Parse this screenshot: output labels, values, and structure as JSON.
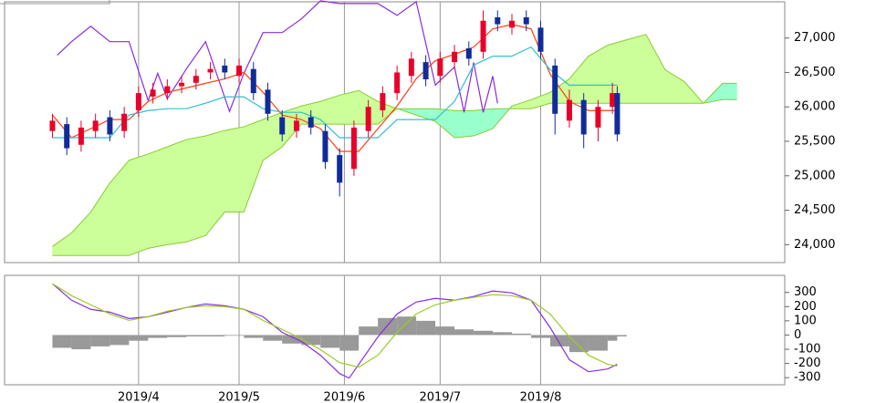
{
  "chart_data": [
    {
      "type": "candlestick",
      "xlim": [
        0,
        163
      ],
      "xticks": [
        28,
        49,
        71,
        91,
        112
      ],
      "ylim": [
        23740,
        27525
      ],
      "yticks": [
        {
          "value": 24000,
          "label": "24,000"
        },
        {
          "value": 24500,
          "label": "24,500"
        },
        {
          "value": 25000,
          "label": "25,000"
        },
        {
          "value": 25500,
          "label": "25,500"
        },
        {
          "value": 26000,
          "label": "26,000"
        },
        {
          "value": 26500,
          "label": "26,500"
        },
        {
          "value": 27000,
          "label": "27,000"
        }
      ],
      "grid": true,
      "up_color": "#e8002a",
      "down_color": "#102c98",
      "x": [
        10,
        13,
        16,
        19,
        22,
        25,
        28,
        31,
        34,
        37,
        40,
        43,
        46,
        49,
        52,
        55,
        58,
        61,
        64,
        67,
        70,
        73,
        76,
        79,
        82,
        85,
        88,
        91,
        94,
        97,
        100,
        103,
        106,
        109,
        112,
        115,
        118,
        121,
        124,
        127,
        128
      ],
      "open": [
        25650,
        25750,
        25450,
        25650,
        25850,
        25650,
        25950,
        26150,
        26200,
        26300,
        26350,
        26500,
        26600,
        26450,
        26550,
        26250,
        25850,
        25650,
        25850,
        25650,
        25300,
        25100,
        25650,
        25950,
        26200,
        26450,
        26650,
        26450,
        26650,
        26850,
        26800,
        27300,
        27150,
        27300,
        27150,
        26600,
        25800,
        26100,
        25700,
        26000,
        26200
      ],
      "high": [
        25900,
        25850,
        25800,
        25900,
        25950,
        26000,
        26300,
        26350,
        26400,
        26450,
        26550,
        26650,
        26700,
        26700,
        26650,
        26350,
        25950,
        25900,
        25950,
        25750,
        25400,
        25800,
        26100,
        26300,
        26600,
        26800,
        26750,
        26800,
        26900,
        26950,
        27400,
        27400,
        27350,
        27400,
        27250,
        26700,
        26250,
        26200,
        26100,
        26350,
        26300
      ],
      "low": [
        25550,
        25300,
        25350,
        25550,
        25500,
        25550,
        25850,
        26050,
        26100,
        26200,
        26250,
        26400,
        26400,
        26350,
        26100,
        25800,
        25500,
        25550,
        25600,
        25100,
        24700,
        25000,
        25550,
        25850,
        26100,
        26350,
        26300,
        26350,
        26550,
        26600,
        26700,
        27100,
        27050,
        27100,
        26700,
        25600,
        25700,
        25400,
        25500,
        25900,
        25500
      ],
      "close": [
        25800,
        25400,
        25700,
        25800,
        25600,
        25900,
        26200,
        26250,
        26300,
        26350,
        26450,
        26550,
        26500,
        26600,
        26200,
        25900,
        25600,
        25800,
        25700,
        25200,
        24900,
        25700,
        26000,
        26200,
        26500,
        26700,
        26400,
        26700,
        26800,
        26700,
        27250,
        27200,
        27250,
        27200,
        26800,
        25900,
        26100,
        25600,
        26000,
        26200,
        25600
      ],
      "cloud": {
        "x": [
          10,
          14,
          18,
          22,
          26,
          30,
          34,
          38,
          42,
          46,
          50,
          54,
          58,
          62,
          66,
          70,
          74,
          78,
          82,
          86,
          90,
          94,
          98,
          102,
          106,
          110,
          114,
          118,
          122,
          126,
          130,
          134,
          138,
          142,
          146,
          150,
          153
        ],
        "span_a": [
          23974,
          24171,
          24474,
          24895,
          25224,
          25316,
          25421,
          25526,
          25579,
          25658,
          25711,
          25816,
          25921,
          26013,
          26079,
          26171,
          26237,
          26079,
          25974,
          25882,
          25789,
          25553,
          25579,
          25684,
          26013,
          26105,
          26211,
          26408,
          26737,
          26895,
          26974,
          27053,
          26539,
          26368,
          26053,
          26105,
          26105
        ],
        "span_b": [
          23842,
          23842,
          23842,
          23842,
          23842,
          23947,
          24000,
          24039,
          24132,
          24474,
          24474,
          25224,
          25421,
          25750,
          25750,
          25750,
          25750,
          25750,
          25974,
          25974,
          25974,
          25947,
          25947,
          25974,
          25974,
          25974,
          26053,
          26053,
          26053,
          26053,
          26053,
          26053,
          26053,
          26053,
          26053,
          26342,
          26342
        ],
        "color_a": "#ccff99",
        "color_b": "#99ffcc",
        "edge_color": "#88cc33"
      },
      "series": [
        {
          "color": "#8a2be2",
          "x": [
            11,
            14,
            18,
            22,
            26,
            30,
            32,
            34,
            38,
            42,
            47,
            50,
            54,
            58,
            62,
            66,
            70,
            74,
            78,
            82,
            86,
            90,
            94,
            96,
            98,
            100,
            102,
            103
          ],
          "values": [
            26750,
            26947,
            27171,
            26947,
            26947,
            26092,
            26487,
            26118,
            26553,
            26947,
            25934,
            26487,
            27079,
            27079,
            27276,
            27539,
            27500,
            27500,
            27500,
            27329,
            27526,
            26316,
            26579,
            25921,
            26645,
            25921,
            26447,
            26053
          ]
        },
        {
          "color": "#ff4010",
          "x": [
            10,
            14,
            18,
            22,
            26,
            30,
            34,
            38,
            42,
            46,
            50,
            54,
            58,
            62,
            66,
            70,
            74,
            78,
            82,
            86,
            90,
            94,
            98,
            102,
            106,
            110,
            114,
            118,
            122,
            126,
            128
          ],
          "values": [
            25882,
            25553,
            25684,
            25816,
            25816,
            26079,
            26211,
            26276,
            26342,
            26408,
            26500,
            26211,
            25882,
            25816,
            25684,
            25355,
            25355,
            25684,
            26013,
            26408,
            26671,
            26763,
            26868,
            27132,
            27197,
            27132,
            26474,
            26079,
            25947,
            25947,
            25947
          ]
        },
        {
          "color": "#30c0d0",
          "x": [
            10,
            14,
            18,
            22,
            26,
            30,
            34,
            38,
            42,
            46,
            50,
            54,
            58,
            62,
            66,
            70,
            74,
            78,
            82,
            86,
            90,
            94,
            98,
            102,
            106,
            110,
            114,
            118,
            122,
            126,
            128
          ],
          "values": [
            25553,
            25553,
            25553,
            25553,
            25882,
            25947,
            25974,
            25974,
            26053,
            26145,
            26145,
            25974,
            25921,
            25921,
            25816,
            25553,
            25553,
            25553,
            25816,
            25816,
            25816,
            26079,
            26605,
            26737,
            26737,
            26868,
            26539,
            26316,
            26316,
            26316,
            26316
          ]
        }
      ]
    },
    {
      "type": "macd",
      "xlim": [
        0,
        163
      ],
      "xticks": [
        {
          "value": 28,
          "label": "2019/4"
        },
        {
          "value": 49,
          "label": "2019/5"
        },
        {
          "value": 71,
          "label": "2019/6"
        },
        {
          "value": 91,
          "label": "2019/7"
        },
        {
          "value": 112,
          "label": "2019/8"
        }
      ],
      "ylim": [
        -350,
        420
      ],
      "yticks": [
        300,
        200,
        100,
        0,
        -100,
        -200,
        -300
      ],
      "series": [
        {
          "type": "bar",
          "color": "#999999",
          "x": [
            10,
            14,
            18,
            22,
            26,
            30,
            34,
            38,
            42,
            46,
            50,
            54,
            58,
            62,
            66,
            70,
            74,
            78,
            82,
            86,
            90,
            94,
            98,
            102,
            106,
            110,
            114,
            118,
            122,
            126,
            128
          ],
          "values": [
            -90,
            -100,
            -80,
            -70,
            -40,
            -20,
            -15,
            -10,
            -10,
            -5,
            -20,
            -40,
            -60,
            -70,
            -90,
            -110,
            60,
            120,
            130,
            100,
            60,
            40,
            30,
            20,
            10,
            -20,
            -80,
            -120,
            -110,
            -40,
            -10
          ]
        },
        {
          "type": "line",
          "color": "#8a2be2",
          "x": [
            10,
            14,
            18,
            22,
            26,
            30,
            34,
            38,
            42,
            46,
            50,
            54,
            58,
            62,
            66,
            70,
            72,
            74,
            78,
            82,
            86,
            90,
            94,
            98,
            102,
            106,
            110,
            114,
            118,
            122,
            126,
            128
          ],
          "values": [
            361,
            245,
            181,
            161,
            116,
            129,
            161,
            194,
            219,
            206,
            181,
            129,
            19,
            -45,
            -142,
            -271,
            -303,
            -206,
            -13,
            148,
            232,
            258,
            245,
            271,
            310,
            297,
            245,
            52,
            -174,
            -258,
            -239,
            -206
          ]
        },
        {
          "type": "line",
          "color": "#99cc22",
          "x": [
            10,
            14,
            18,
            22,
            26,
            30,
            34,
            38,
            42,
            46,
            50,
            54,
            58,
            62,
            66,
            70,
            74,
            78,
            82,
            86,
            90,
            94,
            98,
            102,
            106,
            110,
            114,
            118,
            122,
            126,
            128
          ],
          "values": [
            361,
            277,
            213,
            148,
            103,
            129,
            168,
            194,
            206,
            200,
            181,
            103,
            39,
            -26,
            -103,
            -194,
            -226,
            -142,
            19,
            148,
            213,
            245,
            265,
            284,
            277,
            245,
            148,
            -13,
            -142,
            -206,
            -219
          ]
        }
      ]
    }
  ]
}
